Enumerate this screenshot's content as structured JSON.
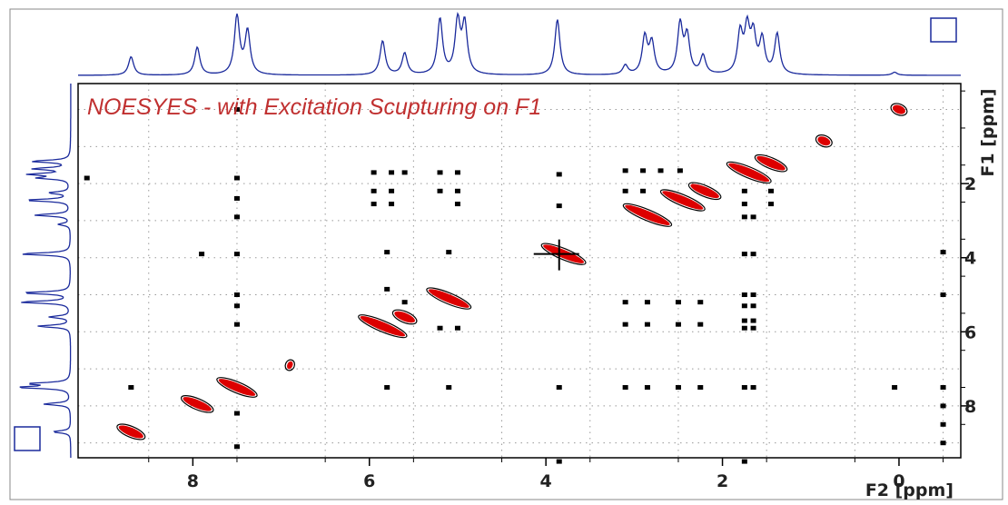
{
  "chart_data": {
    "type": "scatter",
    "title": "NOESYES   - with Excitation Scupturing on F1",
    "xlabel": "F2 [ppm]",
    "ylabel": "F1 [ppm]",
    "xlim": [
      9.3,
      -0.7
    ],
    "ylim": [
      -0.7,
      9.4
    ],
    "x_ticks": [
      8,
      6,
      4,
      2,
      0
    ],
    "x_tick_labels": [
      "8",
      "6",
      "4",
      "2",
      "0"
    ],
    "y_ticks": [
      2,
      4,
      6,
      8
    ],
    "y_tick_labels": [
      "2",
      "4",
      "6",
      "8"
    ],
    "grid": true,
    "colors": {
      "frame": "#000000",
      "grid": "#999999",
      "projection": "#1a2a9c",
      "title": "#c03030",
      "positive": "#dd0000",
      "negative": "#000000"
    },
    "f2_projection_peaks": [
      {
        "ppm": 8.7,
        "h": 0.3
      },
      {
        "ppm": 7.95,
        "h": 0.45
      },
      {
        "ppm": 7.5,
        "h": 0.95
      },
      {
        "ppm": 7.38,
        "h": 0.7
      },
      {
        "ppm": 5.85,
        "h": 0.55
      },
      {
        "ppm": 5.6,
        "h": 0.35
      },
      {
        "ppm": 5.2,
        "h": 0.9
      },
      {
        "ppm": 5.0,
        "h": 0.85
      },
      {
        "ppm": 4.92,
        "h": 0.8
      },
      {
        "ppm": 3.87,
        "h": 0.9
      },
      {
        "ppm": 3.1,
        "h": 0.15
      },
      {
        "ppm": 2.88,
        "h": 0.6
      },
      {
        "ppm": 2.8,
        "h": 0.5
      },
      {
        "ppm": 2.48,
        "h": 0.8
      },
      {
        "ppm": 2.4,
        "h": 0.6
      },
      {
        "ppm": 2.22,
        "h": 0.3
      },
      {
        "ppm": 1.8,
        "h": 0.65
      },
      {
        "ppm": 1.72,
        "h": 0.7
      },
      {
        "ppm": 1.65,
        "h": 0.6
      },
      {
        "ppm": 1.55,
        "h": 0.55
      },
      {
        "ppm": 1.38,
        "h": 0.65
      },
      {
        "ppm": 0.05,
        "h": 0.05
      }
    ],
    "f1_projection_peaks": [
      {
        "ppm": 1.4,
        "h": 0.65
      },
      {
        "ppm": 1.6,
        "h": 0.6
      },
      {
        "ppm": 1.75,
        "h": 0.65
      },
      {
        "ppm": 1.85,
        "h": 0.5
      },
      {
        "ppm": 2.25,
        "h": 0.35
      },
      {
        "ppm": 2.45,
        "h": 0.75
      },
      {
        "ppm": 2.85,
        "h": 0.6
      },
      {
        "ppm": 3.1,
        "h": 0.2
      },
      {
        "ppm": 3.9,
        "h": 0.85
      },
      {
        "ppm": 4.95,
        "h": 0.8
      },
      {
        "ppm": 5.2,
        "h": 0.85
      },
      {
        "ppm": 5.6,
        "h": 0.35
      },
      {
        "ppm": 5.85,
        "h": 0.55
      },
      {
        "ppm": 7.4,
        "h": 0.65
      },
      {
        "ppm": 7.5,
        "h": 0.85
      },
      {
        "ppm": 7.95,
        "h": 0.45
      },
      {
        "ppm": 8.7,
        "h": 0.3
      }
    ],
    "diagonal_peaks": [
      {
        "x": 8.7,
        "y": 8.7,
        "len": 0.3
      },
      {
        "x": 7.95,
        "y": 7.95,
        "len": 0.35
      },
      {
        "x": 7.5,
        "y": 7.5,
        "len": 0.45
      },
      {
        "x": 6.9,
        "y": 6.9,
        "len": 0.05
      },
      {
        "x": 5.85,
        "y": 5.85,
        "len": 0.55
      },
      {
        "x": 5.6,
        "y": 5.6,
        "len": 0.25
      },
      {
        "x": 5.1,
        "y": 5.1,
        "len": 0.5
      },
      {
        "x": 3.8,
        "y": 3.9,
        "len": 0.5
      },
      {
        "x": 2.85,
        "y": 2.85,
        "len": 0.55
      },
      {
        "x": 2.45,
        "y": 2.45,
        "len": 0.5
      },
      {
        "x": 2.2,
        "y": 2.2,
        "len": 0.35
      },
      {
        "x": 1.7,
        "y": 1.7,
        "len": 0.5
      },
      {
        "x": 1.45,
        "y": 1.45,
        "len": 0.35
      },
      {
        "x": 0.85,
        "y": 0.85,
        "len": 0.15
      },
      {
        "x": 0.0,
        "y": 0.0,
        "len": 0.15
      }
    ],
    "cross_peaks": [
      {
        "x": 7.5,
        "y": 0.0
      },
      {
        "x": 9.2,
        "y": 1.85
      },
      {
        "x": 7.5,
        "y": 1.85
      },
      {
        "x": 7.5,
        "y": 2.4
      },
      {
        "x": 7.5,
        "y": 2.9
      },
      {
        "x": 7.5,
        "y": 3.9
      },
      {
        "x": 7.9,
        "y": 3.9
      },
      {
        "x": 7.5,
        "y": 5.0
      },
      {
        "x": 7.5,
        "y": 5.3
      },
      {
        "x": 7.5,
        "y": 5.8
      },
      {
        "x": 8.7,
        "y": 7.5
      },
      {
        "x": 7.5,
        "y": 8.2
      },
      {
        "x": 7.5,
        "y": 9.1
      },
      {
        "x": 5.95,
        "y": 1.7
      },
      {
        "x": 5.75,
        "y": 1.7
      },
      {
        "x": 5.6,
        "y": 1.7
      },
      {
        "x": 5.95,
        "y": 2.2
      },
      {
        "x": 5.75,
        "y": 2.2
      },
      {
        "x": 5.95,
        "y": 2.55
      },
      {
        "x": 5.75,
        "y": 2.55
      },
      {
        "x": 5.8,
        "y": 3.85
      },
      {
        "x": 5.8,
        "y": 4.85
      },
      {
        "x": 5.6,
        "y": 5.2
      },
      {
        "x": 5.8,
        "y": 7.5
      },
      {
        "x": 5.2,
        "y": 1.7
      },
      {
        "x": 5.0,
        "y": 1.7
      },
      {
        "x": 5.2,
        "y": 2.2
      },
      {
        "x": 5.0,
        "y": 2.2
      },
      {
        "x": 5.0,
        "y": 2.55
      },
      {
        "x": 5.1,
        "y": 3.85
      },
      {
        "x": 5.2,
        "y": 5.9
      },
      {
        "x": 5.0,
        "y": 5.9
      },
      {
        "x": 5.1,
        "y": 7.5
      },
      {
        "x": 3.85,
        "y": 1.75
      },
      {
        "x": 3.85,
        "y": 2.6
      },
      {
        "x": 3.85,
        "y": 7.5
      },
      {
        "x": 3.85,
        "y": 9.5
      },
      {
        "x": 3.1,
        "y": 1.65
      },
      {
        "x": 2.9,
        "y": 1.65
      },
      {
        "x": 2.7,
        "y": 1.65
      },
      {
        "x": 2.48,
        "y": 1.65
      },
      {
        "x": 3.1,
        "y": 2.2
      },
      {
        "x": 2.9,
        "y": 2.2
      },
      {
        "x": 3.1,
        "y": 5.2
      },
      {
        "x": 3.1,
        "y": 5.8
      },
      {
        "x": 2.85,
        "y": 5.2
      },
      {
        "x": 2.85,
        "y": 5.8
      },
      {
        "x": 2.5,
        "y": 5.2
      },
      {
        "x": 2.5,
        "y": 5.8
      },
      {
        "x": 2.25,
        "y": 5.2
      },
      {
        "x": 2.25,
        "y": 5.8
      },
      {
        "x": 3.1,
        "y": 7.5
      },
      {
        "x": 2.5,
        "y": 7.5
      },
      {
        "x": 2.85,
        "y": 7.5
      },
      {
        "x": 2.25,
        "y": 7.5
      },
      {
        "x": 1.75,
        "y": 2.2
      },
      {
        "x": 1.75,
        "y": 2.55
      },
      {
        "x": 1.75,
        "y": 2.9
      },
      {
        "x": 1.65,
        "y": 2.9
      },
      {
        "x": 1.75,
        "y": 3.9
      },
      {
        "x": 1.65,
        "y": 3.9
      },
      {
        "x": 1.75,
        "y": 5.0
      },
      {
        "x": 1.65,
        "y": 5.0
      },
      {
        "x": 1.75,
        "y": 5.3
      },
      {
        "x": 1.65,
        "y": 5.3
      },
      {
        "x": 1.75,
        "y": 5.7
      },
      {
        "x": 1.65,
        "y": 5.7
      },
      {
        "x": 1.75,
        "y": 5.9
      },
      {
        "x": 1.65,
        "y": 5.9
      },
      {
        "x": 1.75,
        "y": 7.5
      },
      {
        "x": 1.65,
        "y": 7.5
      },
      {
        "x": 1.75,
        "y": 9.5
      },
      {
        "x": 1.45,
        "y": 2.2
      },
      {
        "x": 1.45,
        "y": 2.55
      },
      {
        "x": 0.05,
        "y": 7.5
      },
      {
        "x": -0.5,
        "y": 3.85
      },
      {
        "x": -0.5,
        "y": 5.0
      },
      {
        "x": -0.5,
        "y": 7.5
      },
      {
        "x": -0.5,
        "y": 8.0
      },
      {
        "x": -0.5,
        "y": 8.5
      },
      {
        "x": -0.5,
        "y": 9.0
      }
    ]
  }
}
